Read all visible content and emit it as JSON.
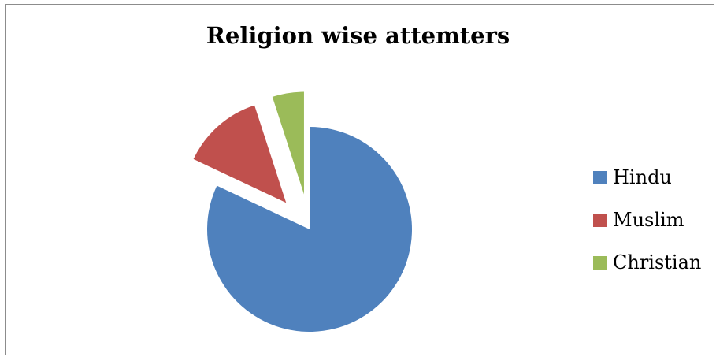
{
  "chart_data": {
    "type": "pie",
    "title": "Religion wise attemters",
    "categories": [
      "Hindu",
      "Muslim",
      "Christian"
    ],
    "values": [
      82,
      13,
      5
    ],
    "exploded": [
      false,
      true,
      true
    ],
    "colors": [
      "#4f81bd",
      "#c0504d",
      "#9bbb59"
    ],
    "legend_position": "right"
  }
}
